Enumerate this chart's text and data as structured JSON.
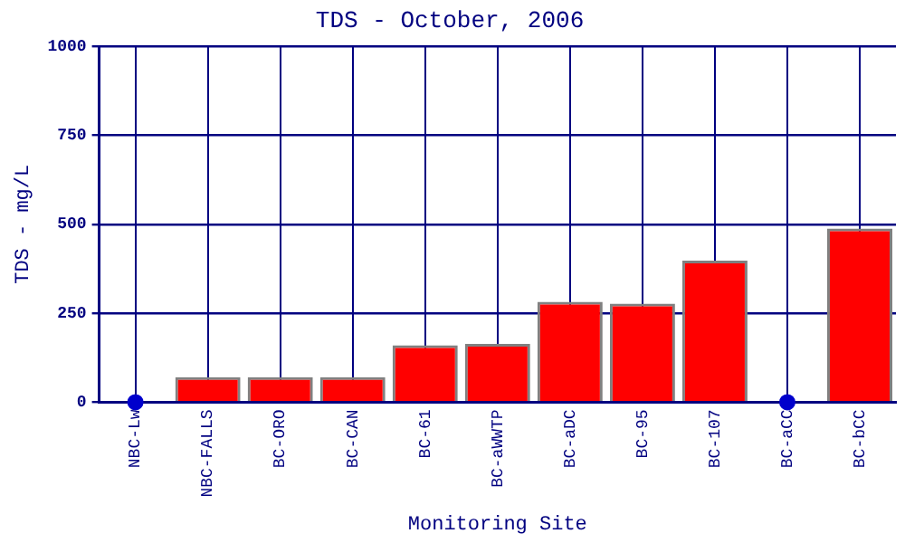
{
  "chart_data": {
    "type": "bar",
    "title": "TDS - October, 2006",
    "xlabel": "Monitoring Site",
    "ylabel": "TDS - mg/L",
    "categories": [
      "NBC-Lw",
      "NBC-FALLS",
      "BC-ORO",
      "BC-CAN",
      "BC-61",
      "BC-aWWTP",
      "BC-aDC",
      "BC-95",
      "BC-107",
      "BC-aCC",
      "BC-bCC"
    ],
    "series": [
      {
        "color": "#ff0000",
        "values": [
          null,
          70,
          70,
          70,
          160,
          164,
          282,
          277,
          398,
          null,
          488
        ]
      },
      {
        "type": "scatter",
        "color": "#0000cc",
        "marker": "circle",
        "values": [
          0,
          null,
          null,
          null,
          null,
          null,
          null,
          null,
          null,
          0,
          null
        ]
      }
    ],
    "ylim": [
      0,
      1000
    ],
    "yticks": [
      0,
      250,
      500,
      750,
      1000
    ],
    "grid": true,
    "legend": false
  }
}
